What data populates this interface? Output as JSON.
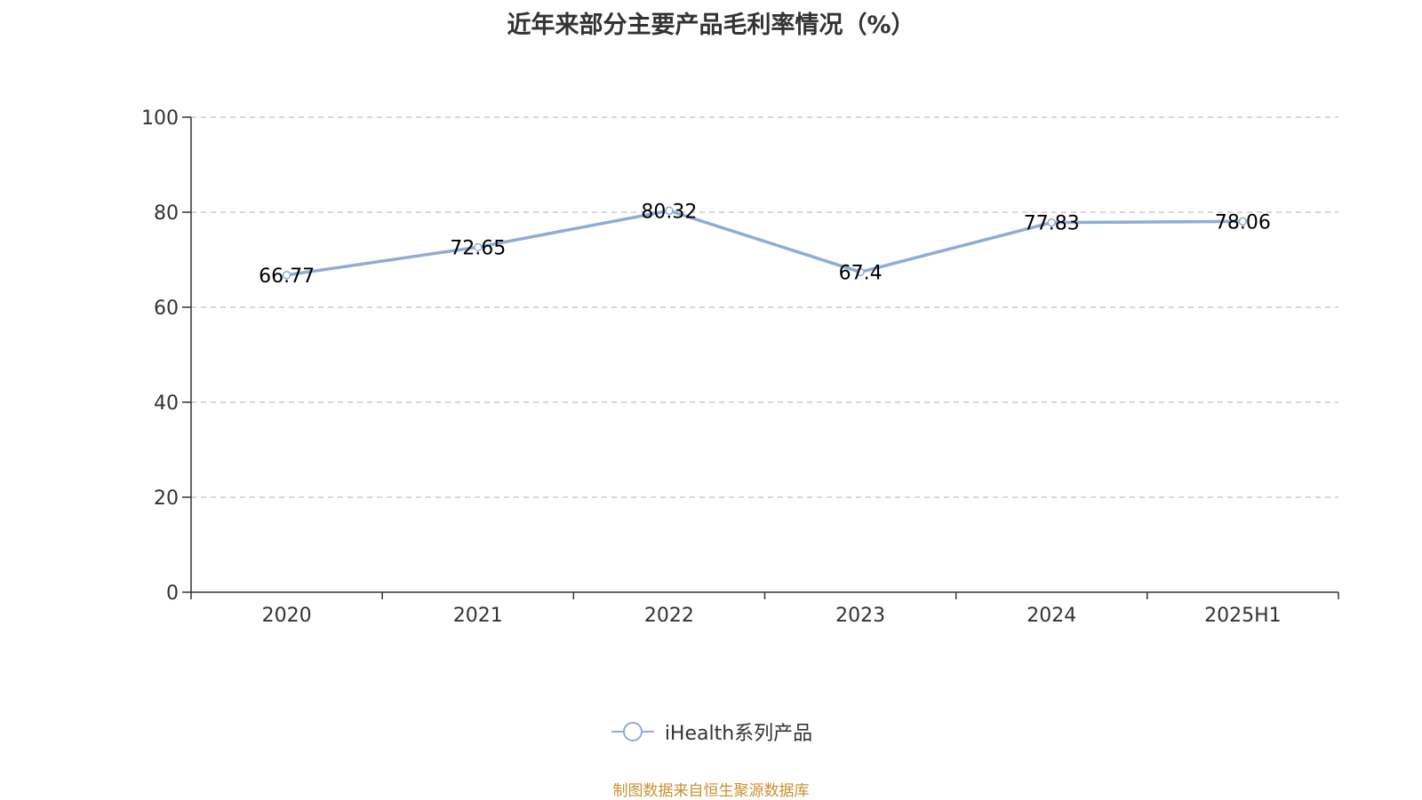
{
  "title": "近年来部分主要产品毛利率情况（%）",
  "source_text": "制图数据来自恒生聚源数据库",
  "colors": {
    "series": "#8eacd6",
    "axis": "#333333",
    "grid": "#cccccc",
    "source": "#c9912e"
  },
  "chart_data": {
    "type": "line",
    "title": "近年来部分主要产品毛利率情况（%）",
    "categories": [
      "2020",
      "2021",
      "2022",
      "2023",
      "2024",
      "2025H1"
    ],
    "series": [
      {
        "name": "iHealth系列产品",
        "values": [
          66.77,
          72.65,
          80.32,
          67.4,
          77.83,
          78.06
        ]
      }
    ],
    "value_labels": [
      "66.77",
      "72.65",
      "80.32",
      "67.4",
      "77.83",
      "78.06"
    ],
    "y_ticks": [
      "0",
      "20",
      "40",
      "60",
      "80",
      "100"
    ],
    "ylim": [
      0,
      100
    ],
    "xlabel": "",
    "ylabel": "",
    "grid": "horizontal-dashed",
    "legend_position": "bottom"
  }
}
